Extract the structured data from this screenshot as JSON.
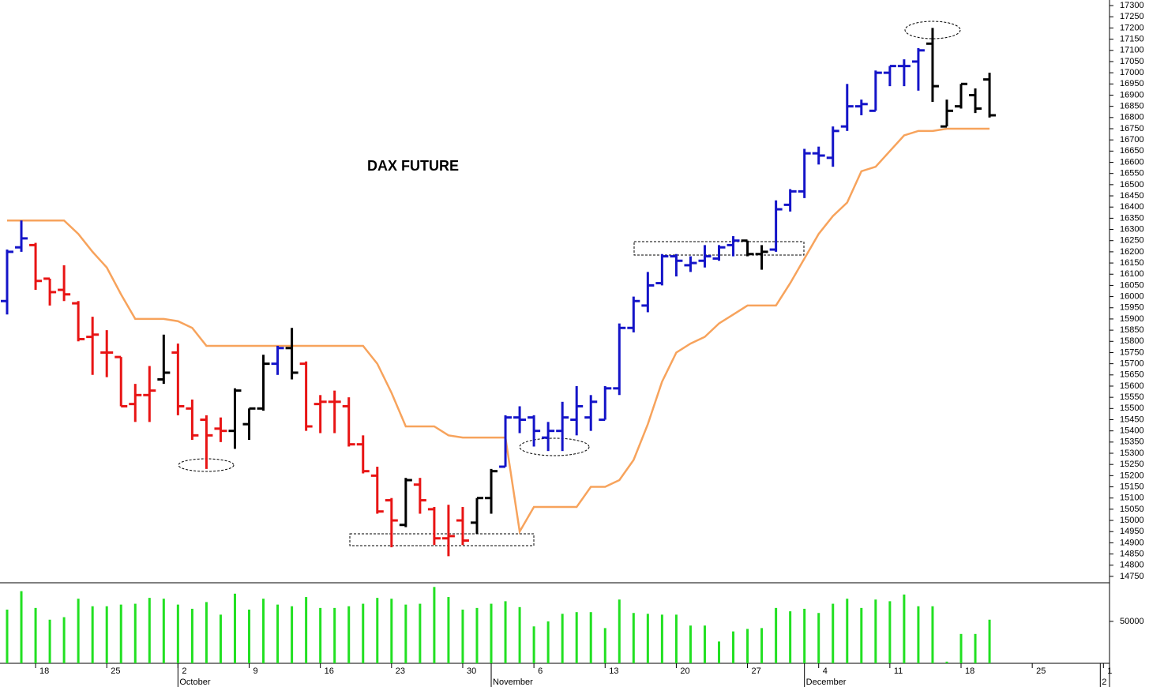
{
  "chart_data": {
    "type": "ohlc",
    "title": "DAX FUTURE",
    "open": [
      15980,
      16220,
      16230,
      16080,
      16030,
      15970,
      15820,
      15750,
      15730,
      15520,
      15560,
      15630,
      15750,
      15500,
      15450,
      15410,
      15400,
      15430,
      15500,
      15700,
      15770,
      15700,
      15520,
      15530,
      15510,
      15340,
      15200,
      15090,
      14980,
      15160,
      15050,
      14920,
      15000,
      14990,
      15100,
      15240,
      15460,
      15460,
      15370,
      15400,
      15450,
      15460,
      15450,
      15590,
      15860,
      15960,
      16060,
      16180,
      16140,
      16160,
      16170,
      16230,
      16250,
      16190,
      16210,
      16410,
      16470,
      16640,
      16620,
      16760,
      16850,
      16830,
      17000,
      17030,
      17050,
      17130,
      16760,
      16850,
      16900,
      16970
    ],
    "high": [
      16210,
      16340,
      16240,
      16080,
      16140,
      15980,
      15910,
      15850,
      15730,
      15610,
      15690,
      15830,
      15790,
      15540,
      15470,
      15460,
      15590,
      15500,
      15740,
      15780,
      15860,
      15710,
      15560,
      15580,
      15550,
      15380,
      15240,
      15100,
      15190,
      15190,
      15060,
      15070,
      15060,
      15100,
      15230,
      15470,
      15510,
      15470,
      15440,
      15530,
      15600,
      15560,
      15600,
      15880,
      16000,
      16110,
      16190,
      16190,
      16180,
      16230,
      16230,
      16270,
      16250,
      16230,
      16430,
      16480,
      16660,
      16670,
      16760,
      16950,
      16880,
      17010,
      17030,
      17060,
      17110,
      17200,
      16880,
      16950,
      16930,
      17000
    ],
    "low": [
      15920,
      16200,
      16030,
      15960,
      15980,
      15800,
      15650,
      15640,
      15510,
      15440,
      15440,
      15610,
      15470,
      15360,
      15230,
      15350,
      15320,
      15360,
      15490,
      15650,
      15630,
      15400,
      15390,
      15390,
      15330,
      15210,
      15030,
      14880,
      14970,
      15030,
      14890,
      14840,
      14890,
      14940,
      15030,
      15240,
      15390,
      15330,
      15310,
      15310,
      15380,
      15400,
      15450,
      15560,
      15840,
      15930,
      16050,
      16090,
      16110,
      16130,
      16160,
      16180,
      16180,
      16120,
      16200,
      16380,
      16440,
      16590,
      16580,
      16740,
      16810,
      16830,
      16940,
      16940,
      16920,
      16870,
      16760,
      16840,
      16820,
      16800
    ],
    "close": [
      16200,
      16260,
      16070,
      16020,
      16010,
      15810,
      15830,
      15750,
      15510,
      15560,
      15580,
      15660,
      15510,
      15380,
      15380,
      15400,
      15580,
      15500,
      15700,
      15770,
      15660,
      15420,
      15530,
      15530,
      15340,
      15220,
      15040,
      15000,
      15180,
      15090,
      14920,
      14930,
      14910,
      15100,
      15220,
      15460,
      15450,
      15400,
      15400,
      15460,
      15510,
      15530,
      15590,
      15860,
      15980,
      16050,
      16180,
      16160,
      16150,
      16180,
      16220,
      16250,
      16190,
      16200,
      16390,
      16470,
      16640,
      16630,
      16740,
      16850,
      16860,
      17000,
      17030,
      17030,
      17100,
      16940,
      16830,
      16950,
      16840,
      16810
    ],
    "bar_colors": [
      "#1414c8",
      "#1414c8",
      "#e81414",
      "#e81414",
      "#e81414",
      "#e81414",
      "#e81414",
      "#e81414",
      "#e81414",
      "#e81414",
      "#e81414",
      "#000000",
      "#e81414",
      "#e81414",
      "#e81414",
      "#e81414",
      "#000000",
      "#000000",
      "#000000",
      "#1414c8",
      "#000000",
      "#e81414",
      "#e81414",
      "#e81414",
      "#e81414",
      "#e81414",
      "#e81414",
      "#e81414",
      "#000000",
      "#e81414",
      "#e81414",
      "#e81414",
      "#e81414",
      "#000000",
      "#000000",
      "#1414c8",
      "#1414c8",
      "#1414c8",
      "#1414c8",
      "#1414c8",
      "#1414c8",
      "#1414c8",
      "#1414c8",
      "#1414c8",
      "#1414c8",
      "#1414c8",
      "#1414c8",
      "#1414c8",
      "#1414c8",
      "#1414c8",
      "#1414c8",
      "#1414c8",
      "#000000",
      "#000000",
      "#1414c8",
      "#1414c8",
      "#1414c8",
      "#1414c8",
      "#1414c8",
      "#1414c8",
      "#1414c8",
      "#1414c8",
      "#1414c8",
      "#1414c8",
      "#1414c8",
      "#000000",
      "#000000",
      "#000000",
      "#000000",
      "#000000"
    ],
    "trail": {
      "color": "#f7a35c",
      "values": [
        16340,
        16340,
        16340,
        16340,
        16340,
        16280,
        16200,
        16130,
        16010,
        15900,
        15900,
        15900,
        15890,
        15860,
        15780,
        15780,
        15780,
        15780,
        15780,
        15780,
        15780,
        15780,
        15780,
        15780,
        15780,
        15780,
        15700,
        15570,
        15420,
        15420,
        15420,
        15380,
        15370,
        15370,
        15370,
        15370,
        14950,
        15060,
        15060,
        15060,
        15060,
        15150,
        15150,
        15180,
        15270,
        15430,
        15620,
        15750,
        15790,
        15820,
        15880,
        15920,
        15960,
        15960,
        15960,
        16060,
        16170,
        16280,
        16360,
        16420,
        16560,
        16580,
        16650,
        16720,
        16740,
        16740,
        16750,
        16750,
        16750,
        16750
      ]
    },
    "ylim": [
      14725,
      17325
    ],
    "yticks": [
      14750,
      14800,
      14850,
      14900,
      14950,
      15000,
      15050,
      15100,
      15150,
      15200,
      15250,
      15300,
      15350,
      15400,
      15450,
      15500,
      15550,
      15600,
      15650,
      15700,
      15750,
      15800,
      15850,
      15900,
      15950,
      16000,
      16050,
      16100,
      16150,
      16200,
      16250,
      16300,
      16350,
      16400,
      16450,
      16500,
      16550,
      16600,
      16650,
      16700,
      16750,
      16800,
      16850,
      16900,
      16950,
      17000,
      17050,
      17100,
      17150,
      17200,
      17250,
      17300
    ],
    "volume": {
      "color": "#22e022",
      "ylim": [
        0,
        96000
      ],
      "yticks": [
        50000
      ],
      "values": [
        64000,
        86000,
        66000,
        52000,
        55000,
        77000,
        68000,
        68000,
        70000,
        71000,
        78000,
        77000,
        70000,
        65000,
        73000,
        58000,
        83000,
        64000,
        77000,
        70000,
        68000,
        79000,
        66000,
        66000,
        68000,
        71000,
        78000,
        77000,
        70000,
        71000,
        91000,
        79000,
        64000,
        66000,
        71000,
        74000,
        67000,
        44000,
        50000,
        59000,
        61000,
        61000,
        42000,
        76000,
        60000,
        59000,
        58000,
        58000,
        45000,
        45000,
        26000,
        38000,
        41000,
        42000,
        66000,
        62000,
        65000,
        60000,
        71000,
        77000,
        66000,
        76000,
        74000,
        82000,
        68000,
        68000,
        2000,
        35000,
        35000,
        52000
      ]
    },
    "x_labels": [
      "18",
      "25",
      "2",
      "9",
      "16",
      "23",
      "30",
      "6",
      "13",
      "20",
      "27",
      "4",
      "11",
      "18",
      "25",
      "1"
    ],
    "month_labels": [
      "October",
      "November",
      "December",
      "2"
    ]
  }
}
